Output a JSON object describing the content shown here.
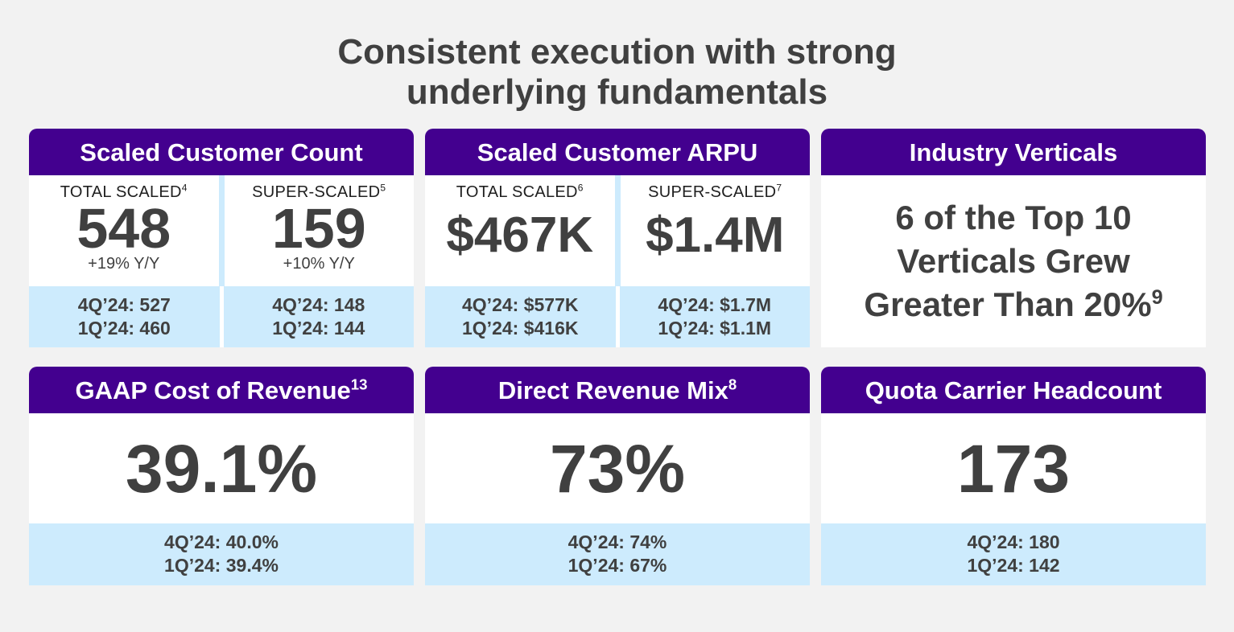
{
  "title_line1": "Consistent execution with strong",
  "title_line2": "underlying fundamentals",
  "count": {
    "header": "Scaled Customer Count",
    "left": {
      "label": "TOTAL SCALED",
      "sup": "4",
      "value": "548",
      "growth": "+19% Y/Y",
      "q4": "4Q’24: 527",
      "q1": "1Q’24: 460"
    },
    "right": {
      "label": "SUPER-SCALED",
      "sup": "5",
      "value": "159",
      "growth": "+10% Y/Y",
      "q4": "4Q’24: 148",
      "q1": "1Q’24: 144"
    }
  },
  "arpu": {
    "header": "Scaled Customer ARPU",
    "left": {
      "label": "TOTAL SCALED",
      "sup": "6",
      "value": "$467K",
      "q4": "4Q’24: $577K",
      "q1": "1Q’24: $416K"
    },
    "right": {
      "label": "SUPER-SCALED",
      "sup": "7",
      "value": "$1.4M",
      "q4": "4Q’24: $1.7M",
      "q1": "1Q’24: $1.1M"
    }
  },
  "verticals": {
    "header": "Industry Verticals",
    "line1": "6 of the Top 10",
    "line2": "Verticals Grew",
    "line3": "Greater Than 20%",
    "sup": "9"
  },
  "gaap": {
    "header": "GAAP Cost of Revenue",
    "sup": "13",
    "value": "39.1%",
    "q4": "4Q’24: 40.0%",
    "q1": "1Q’24: 39.4%"
  },
  "direct": {
    "header": "Direct Revenue Mix",
    "sup": "8",
    "value": "73%",
    "q4": "4Q’24: 74%",
    "q1": "1Q’24: 67%"
  },
  "quota": {
    "header": "Quota Carrier Headcount",
    "value": "173",
    "q4": "4Q’24: 180",
    "q1": "1Q’24: 142"
  }
}
